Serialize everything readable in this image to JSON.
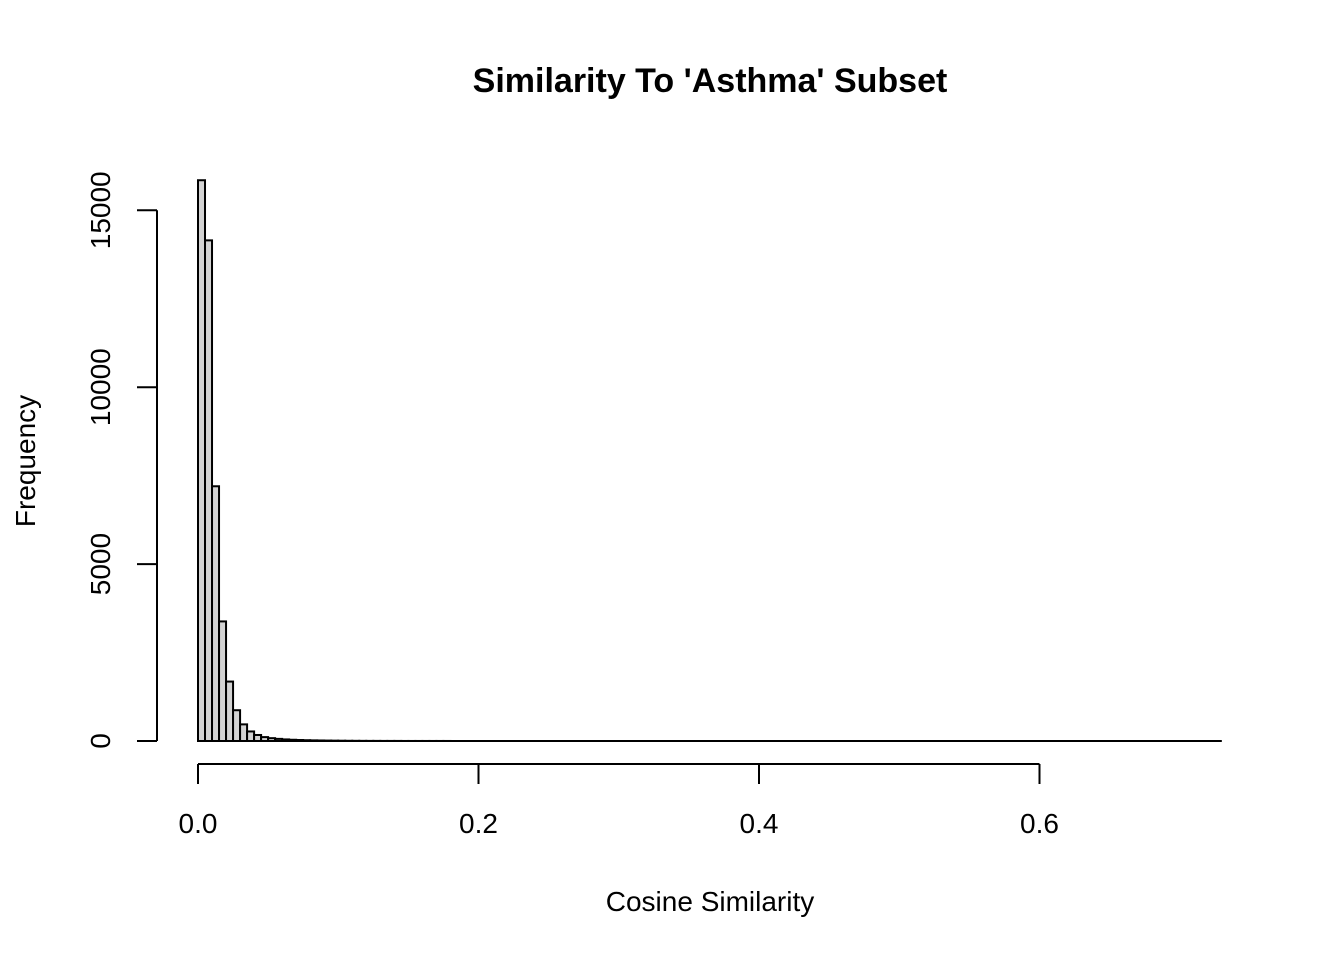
{
  "chart_data": {
    "type": "bar",
    "subtype": "histogram",
    "title": "Similarity To 'Asthma' Subset",
    "xlabel": "Cosine Similarity",
    "ylabel": "Frequency",
    "xlim": [
      0.0,
      0.73
    ],
    "ylim": [
      0,
      16000
    ],
    "bin_width": 0.005,
    "bin_start": 0.0,
    "bin_end": 0.73,
    "x_ticks": [
      "0.0",
      "0.2",
      "0.4",
      "0.6"
    ],
    "x_tick_values": [
      0.0,
      0.2,
      0.4,
      0.6
    ],
    "y_ticks": [
      "0",
      "5000",
      "10000",
      "15000"
    ],
    "y_tick_values": [
      0,
      5000,
      10000,
      15000
    ],
    "values": [
      15850,
      14150,
      7200,
      3380,
      1680,
      870,
      470,
      270,
      170,
      110,
      80,
      60,
      45,
      35,
      28,
      22,
      18,
      15,
      12,
      10,
      8,
      6,
      5,
      4,
      3,
      3,
      2,
      2,
      2,
      1,
      1,
      1,
      1,
      1,
      1,
      1
    ],
    "bar_fill": "#d3d3d3",
    "bar_stroke": "#000000",
    "grid": false
  }
}
